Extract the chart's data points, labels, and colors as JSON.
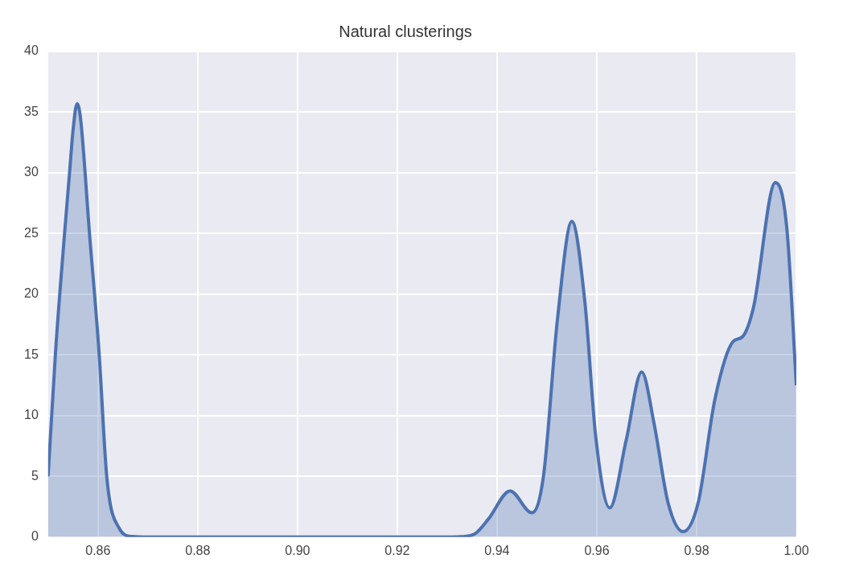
{
  "chart_data": {
    "type": "area",
    "title": "Natural clusterings",
    "xlim": [
      0.85,
      1.0
    ],
    "xticks": [
      {
        "value": 0.86,
        "label": "0.86"
      },
      {
        "value": 0.88,
        "label": "0.88"
      },
      {
        "value": 0.9,
        "label": "0.90"
      },
      {
        "value": 0.92,
        "label": "0.92"
      },
      {
        "value": 0.94,
        "label": "0.94"
      },
      {
        "value": 0.96,
        "label": "0.96"
      },
      {
        "value": 0.98,
        "label": "0.98"
      },
      {
        "value": 1.0,
        "label": "1.00"
      }
    ],
    "ylim": [
      0,
      40
    ],
    "yticks": [
      0,
      5,
      10,
      15,
      20,
      25,
      30,
      35,
      40
    ],
    "grid": true,
    "legend": false,
    "series": [
      {
        "color": "#4c72b0",
        "x": [
          0.85,
          0.8515,
          0.8533,
          0.8543,
          0.855,
          0.8558,
          0.8565,
          0.8583,
          0.8602,
          0.8618,
          0.8643,
          0.8668,
          0.87,
          0.9,
          0.93,
          0.9327,
          0.9355,
          0.9383,
          0.9426,
          0.947,
          0.9493,
          0.9521,
          0.955,
          0.9576,
          0.9598,
          0.9626,
          0.9659,
          0.969,
          0.9715,
          0.9743,
          0.9773,
          0.9803,
          0.9837,
          0.9873,
          0.9892,
          0.9914,
          0.9958,
          0.9981,
          1.0
        ],
        "values": [
          5.0,
          15.3,
          25.0,
          30.0,
          33.5,
          35.7,
          34.5,
          25.0,
          15.3,
          4.8,
          0.7,
          0.05,
          0,
          0,
          0,
          0.03,
          0.25,
          1.5,
          3.8,
          2.0,
          5.0,
          17.9,
          26.0,
          19.4,
          8.2,
          2.4,
          8.0,
          13.6,
          9.3,
          2.8,
          0.45,
          2.8,
          11.4,
          16.1,
          16.5,
          18.9,
          29.2,
          25.4,
          12.5
        ]
      }
    ]
  }
}
